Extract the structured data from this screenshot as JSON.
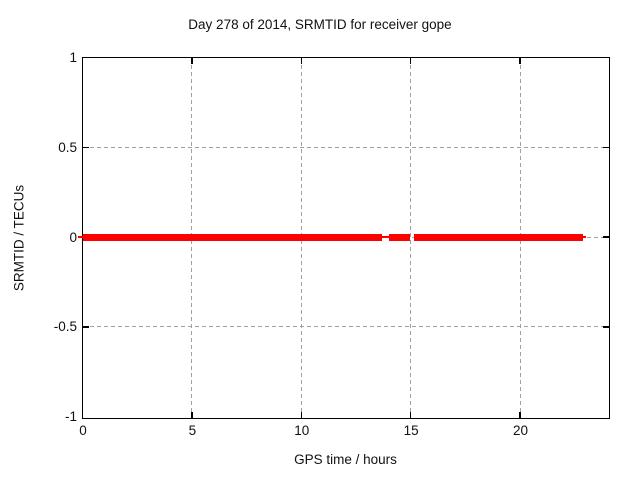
{
  "chart_data": {
    "type": "line",
    "title": "Day 278 of 2014, SRMTID for receiver gope",
    "xlabel": "GPS time / hours",
    "ylabel": "SRMTID / TECUs",
    "xlim": [
      0,
      24
    ],
    "ylim": [
      -1,
      1
    ],
    "xticks": [
      0,
      5,
      10,
      15,
      20
    ],
    "yticks": [
      -1,
      -0.5,
      0,
      0.5,
      1
    ],
    "grid": true,
    "legend": "none",
    "series": [
      {
        "name": "SRMTID",
        "color": "#ff0000",
        "y_value": 0,
        "note": "flat band at SRMTID = 0 TECUs",
        "segments": [
          {
            "x0": -0.2,
            "x1": 0,
            "style": "thin"
          },
          {
            "x0": 0,
            "x1": 13.7,
            "style": "thick"
          },
          {
            "x0": 13.7,
            "x1": 14.0,
            "style": "thin"
          },
          {
            "x0": 14.0,
            "x1": 14.95,
            "style": "thick"
          },
          {
            "x0": 15.15,
            "x1": 22.86,
            "style": "thick"
          },
          {
            "x0": 22.86,
            "x1": 23.0,
            "style": "thin"
          }
        ]
      }
    ],
    "colors": {
      "series": "#ff0000",
      "grid": "#a0a0a0",
      "border": "#000000",
      "text": "#000000",
      "background": "#ffffff"
    }
  }
}
